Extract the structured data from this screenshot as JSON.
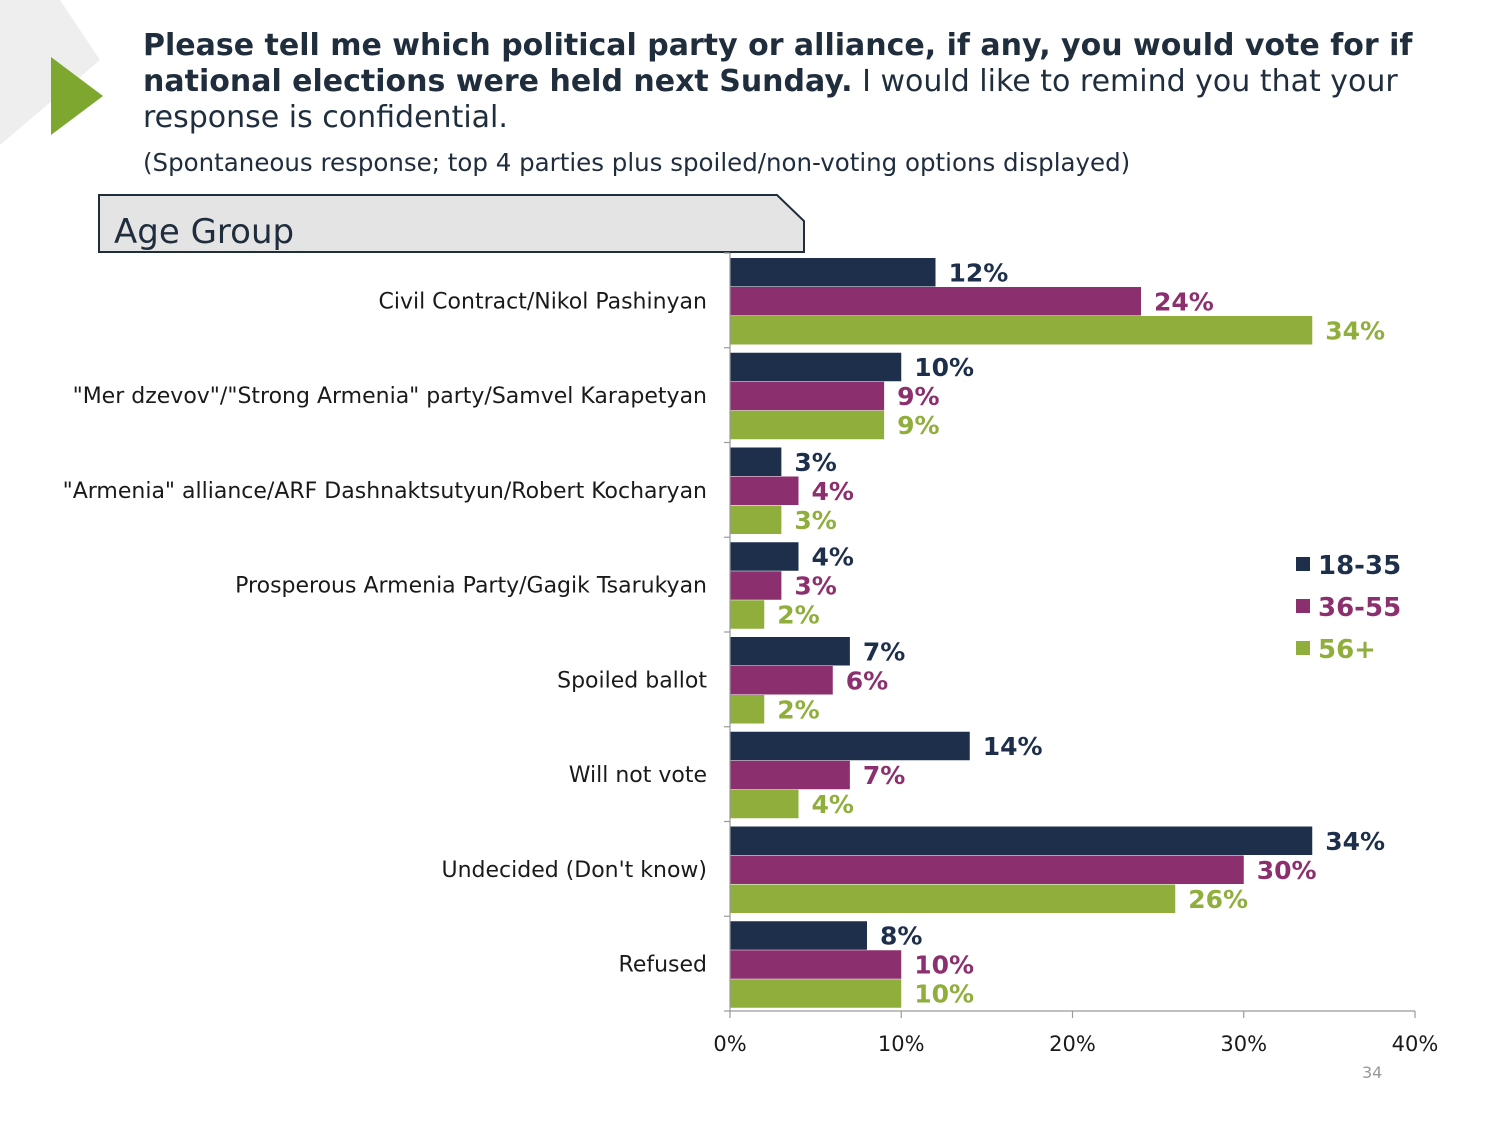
{
  "header": {
    "question_bold": "Please tell me which political party or alliance, if any, you would vote for if national elections were held next Sunday.",
    "question_rest": " I would like to remind you that your response is confidential.",
    "subtitle": "(Spontaneous response; top 4 parties plus spoiled/non-voting options displayed)"
  },
  "page_number": "34",
  "colors": {
    "navy": "#1d2f4b",
    "purple": "#8c2f6e",
    "green": "#8fae3c",
    "decor_green": "#7ea72f",
    "tab_fill": "#e4e4e4"
  },
  "chart_data": {
    "type": "bar",
    "orientation": "horizontal",
    "title": "Age Group",
    "categories": [
      "Civil Contract/Nikol Pashinyan",
      "\"Mer dzevov\"/\"Strong Armenia\" party/Samvel Karapetyan",
      "\"Armenia\" alliance/ARF Dashnaktsutyun/Robert Kocharyan",
      "Prosperous Armenia Party/Gagik Tsarukyan",
      "Spoiled ballot",
      "Will not vote",
      "Undecided (Don't know)",
      "Refused"
    ],
    "series": [
      {
        "name": "18-35",
        "color": "#1d2f4b",
        "values": [
          12,
          10,
          3,
          4,
          7,
          14,
          34,
          8
        ],
        "labels": [
          "12%",
          "10%",
          "3%",
          "4%",
          "7%",
          "14%",
          "34%",
          "8%"
        ]
      },
      {
        "name": "36-55",
        "color": "#8c2f6e",
        "values": [
          24,
          9,
          4,
          3,
          6,
          7,
          30,
          10
        ],
        "labels": [
          "24%",
          "9%",
          "4%",
          "3%",
          "6%",
          "7%",
          "30%",
          "10%"
        ]
      },
      {
        "name": "56+",
        "color": "#8fae3c",
        "values": [
          34,
          9,
          3,
          2,
          2,
          4,
          26,
          10
        ],
        "labels": [
          "34%",
          "9%",
          "3%",
          "2%",
          "2%",
          "4%",
          "26%",
          "10%"
        ]
      }
    ],
    "xlim": [
      0,
      40
    ],
    "xticks": [
      0,
      10,
      20,
      30,
      40
    ],
    "xtick_labels": [
      "0%",
      "10%",
      "20%",
      "30%",
      "40%"
    ],
    "xlabel": "",
    "ylabel": "",
    "legend": "right",
    "grid": false
  }
}
